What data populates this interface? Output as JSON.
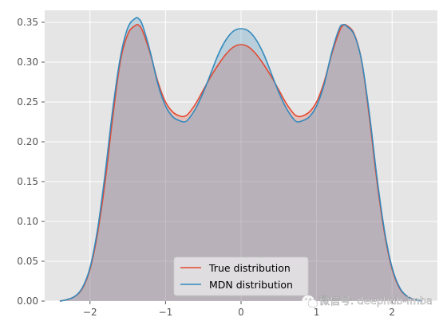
{
  "chart_data": {
    "type": "area",
    "title": "",
    "xlabel": "",
    "ylabel": "",
    "xlim": [
      -2.6,
      2.6
    ],
    "ylim": [
      0,
      0.365
    ],
    "grid": true,
    "legend_position": "lower-center",
    "x_ticks": [
      -2,
      -1,
      0,
      1,
      2
    ],
    "x_tick_labels": [
      "−2",
      "−1",
      "0",
      "1",
      "2"
    ],
    "y_ticks": [
      0,
      0.05,
      0.1,
      0.15,
      0.2,
      0.25,
      0.3,
      0.35
    ],
    "y_tick_labels": [
      "0.00",
      "0.05",
      "0.10",
      "0.15",
      "0.20",
      "0.25",
      "0.30",
      "0.35"
    ],
    "series": [
      {
        "name": "True distribution",
        "color": "#E24A33",
        "fill": "#E24A33",
        "x": [
          -2.4,
          -2.3,
          -2.2,
          -2.1,
          -2.0,
          -1.9,
          -1.8,
          -1.7,
          -1.6,
          -1.5,
          -1.4,
          -1.35,
          -1.3,
          -1.2,
          -1.1,
          -1.0,
          -0.9,
          -0.8,
          -0.75,
          -0.7,
          -0.6,
          -0.5,
          -0.4,
          -0.3,
          -0.2,
          -0.1,
          0.0,
          0.1,
          0.2,
          0.3,
          0.4,
          0.5,
          0.6,
          0.7,
          0.75,
          0.8,
          0.9,
          1.0,
          1.1,
          1.2,
          1.3,
          1.35,
          1.4,
          1.5,
          1.6,
          1.7,
          1.8,
          1.9,
          2.0,
          2.1,
          2.2,
          2.3,
          2.4
        ],
        "y": [
          0.0,
          0.002,
          0.006,
          0.016,
          0.04,
          0.085,
          0.15,
          0.23,
          0.3,
          0.335,
          0.346,
          0.346,
          0.338,
          0.31,
          0.275,
          0.25,
          0.237,
          0.232,
          0.232,
          0.235,
          0.248,
          0.265,
          0.282,
          0.297,
          0.31,
          0.319,
          0.322,
          0.319,
          0.31,
          0.297,
          0.282,
          0.265,
          0.248,
          0.235,
          0.232,
          0.232,
          0.237,
          0.25,
          0.275,
          0.31,
          0.338,
          0.346,
          0.346,
          0.335,
          0.3,
          0.23,
          0.15,
          0.085,
          0.04,
          0.016,
          0.006,
          0.002,
          0.0
        ]
      },
      {
        "name": "MDN distribution",
        "color": "#348ABD",
        "fill": "#348ABD",
        "x": [
          -2.4,
          -2.3,
          -2.2,
          -2.1,
          -2.0,
          -1.9,
          -1.8,
          -1.7,
          -1.6,
          -1.5,
          -1.4,
          -1.35,
          -1.3,
          -1.2,
          -1.1,
          -1.0,
          -0.9,
          -0.8,
          -0.75,
          -0.7,
          -0.6,
          -0.5,
          -0.4,
          -0.3,
          -0.2,
          -0.1,
          0.0,
          0.1,
          0.2,
          0.3,
          0.4,
          0.5,
          0.6,
          0.7,
          0.75,
          0.8,
          0.9,
          1.0,
          1.1,
          1.2,
          1.3,
          1.35,
          1.4,
          1.5,
          1.6,
          1.7,
          1.8,
          1.9,
          2.0,
          2.1,
          2.2,
          2.3,
          2.4
        ],
        "y": [
          0.0,
          0.002,
          0.006,
          0.017,
          0.042,
          0.09,
          0.16,
          0.24,
          0.305,
          0.343,
          0.355,
          0.354,
          0.345,
          0.312,
          0.272,
          0.245,
          0.231,
          0.226,
          0.225,
          0.228,
          0.242,
          0.262,
          0.286,
          0.31,
          0.328,
          0.339,
          0.342,
          0.339,
          0.328,
          0.31,
          0.286,
          0.262,
          0.242,
          0.228,
          0.225,
          0.226,
          0.231,
          0.245,
          0.272,
          0.312,
          0.342,
          0.347,
          0.345,
          0.334,
          0.3,
          0.235,
          0.155,
          0.088,
          0.042,
          0.017,
          0.006,
          0.002,
          0.0
        ]
      }
    ]
  },
  "watermark": {
    "text": "微信号: deephub-imba",
    "icon": "wechat-icon"
  },
  "colors": {
    "axes_background": "#E5E5E5",
    "grid": "#FFFFFF",
    "tick_label": "#555555"
  }
}
